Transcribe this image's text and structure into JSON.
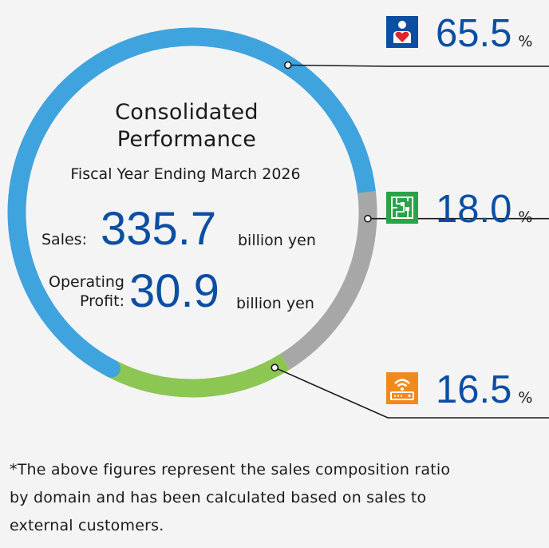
{
  "center": {
    "title_line1": "Consolidated",
    "title_line2": "Performance",
    "fiscal_year": "Fiscal Year Ending March 2026",
    "sales_label": "Sales:",
    "sales_value": "335.7",
    "sales_unit": "billion yen",
    "op_label_line1": "Operating",
    "op_label_line2": "Profit:",
    "op_value": "30.9",
    "op_unit": "billion yen"
  },
  "chart_data": {
    "type": "pie",
    "donut": true,
    "labels": [
      "",
      "",
      ""
    ],
    "icons": [
      "heart-care-icon",
      "circuit-board-icon",
      "wifi-router-icon"
    ],
    "values": [
      65.5,
      18.0,
      16.5
    ],
    "display_values": [
      "65.5",
      "18.0",
      "16.5"
    ],
    "unit": "%",
    "colors": [
      "#3fa3de",
      "#a7a7a7",
      "#8cc653"
    ],
    "icon_colors": [
      "#0b4ea2",
      "#29a347",
      "#f08a1c"
    ]
  },
  "footnote": {
    "line1": "*The above figures represent the sales composition ratio",
    "line2": "by domain and has been calculated based on sales to",
    "line3": "external customers."
  }
}
